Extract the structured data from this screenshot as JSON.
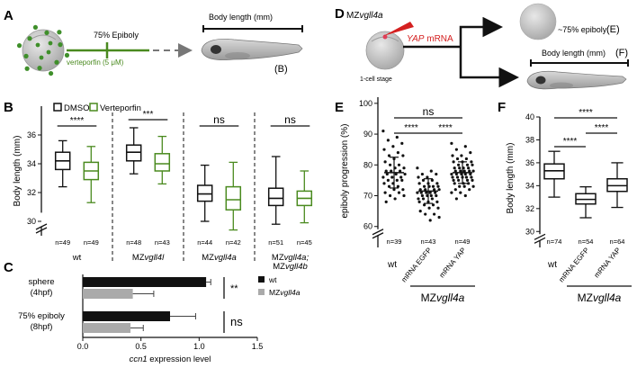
{
  "colors": {
    "dmso": "#111111",
    "verteporfin": "#4a8a1f",
    "wt_bar": "#111111",
    "mz_bar": "#aaaaaa",
    "yap_red": "#d42020",
    "embryo_gray": "#bfbfbf",
    "dot_green": "#3f8f2a",
    "arrow_gray": "#777777"
  },
  "panelA": {
    "letter": "A",
    "epiboly_label": "75% Epiboly",
    "drug_label": "verteporfin (5 μM)",
    "body_length_label": "Body length (mm)",
    "ref_label": "(B)"
  },
  "panelD": {
    "letter": "D",
    "genotype_prefix": "MZ",
    "genotype_italic": "vgll4a",
    "mrna_italic": "YAP",
    "mrna_suffix": " mRNA",
    "stage_label": "1-cell stage",
    "epiboly_label": "~75% epiboly",
    "epiboly_ref": "(E)",
    "body_length_label": "Body length (mm)",
    "body_length_ref": "(F)"
  },
  "chart_data": [
    {
      "panel": "B",
      "type": "box",
      "ylabel": "Body length (mm)",
      "ylim": [
        29,
        38
      ],
      "yticks": [
        30,
        32,
        34,
        36
      ],
      "legend": [
        "DMSO",
        "Verteporfin"
      ],
      "legend_placement": "top",
      "groups": [
        {
          "label": "wt",
          "label_italic": "",
          "label_line2": "",
          "label_line2_italic": "",
          "significance": "****",
          "boxes": [
            {
              "series": "DMSO",
              "n": "n=49",
              "min": 32.4,
              "q1": 33.6,
              "median": 34.2,
              "q3": 34.8,
              "max": 35.6
            },
            {
              "series": "Verteporfin",
              "n": "n=49",
              "min": 31.3,
              "q1": 32.9,
              "median": 33.5,
              "q3": 34.1,
              "max": 35.2
            }
          ]
        },
        {
          "label": "MZ",
          "label_italic": "vgll4l",
          "label_line2": "",
          "label_line2_italic": "",
          "significance": "***",
          "boxes": [
            {
              "series": "DMSO",
              "n": "n=48",
              "min": 33.3,
              "q1": 34.2,
              "median": 34.8,
              "q3": 35.3,
              "max": 36.5
            },
            {
              "series": "Verteporfin",
              "n": "n=43",
              "min": 32.6,
              "q1": 33.5,
              "median": 34.0,
              "q3": 34.7,
              "max": 35.9
            }
          ]
        },
        {
          "label": "MZ",
          "label_italic": "vgll4a",
          "label_line2": "",
          "label_line2_italic": "",
          "significance": "ns",
          "boxes": [
            {
              "series": "DMSO",
              "n": "n=44",
              "min": 30.0,
              "q1": 31.4,
              "median": 31.9,
              "q3": 32.5,
              "max": 33.9
            },
            {
              "series": "Verteporfin",
              "n": "n=42",
              "min": 29.4,
              "q1": 30.8,
              "median": 31.5,
              "q3": 32.4,
              "max": 34.1
            }
          ]
        },
        {
          "label": "MZ",
          "label_italic": "vgll4a;",
          "label_line2": "MZ",
          "label_line2_italic": "vgll4b",
          "significance": "ns",
          "boxes": [
            {
              "series": "DMSO",
              "n": "n=51",
              "min": 29.8,
              "q1": 31.1,
              "median": 31.6,
              "q3": 32.3,
              "max": 34.5
            },
            {
              "series": "Verteporfin",
              "n": "n=45",
              "min": 29.9,
              "q1": 31.1,
              "median": 31.6,
              "q3": 32.1,
              "max": 33.5
            }
          ]
        }
      ]
    },
    {
      "panel": "C",
      "type": "bar",
      "orientation": "horizontal",
      "xlabel_italic": "ccn1",
      "xlabel_rest": " expression level",
      "xlim": [
        0,
        1.5
      ],
      "xticks": [
        "0.0",
        "0.5",
        "1.0",
        "1.5"
      ],
      "legend": [
        "wt",
        "MZvgll4a"
      ],
      "legend_wt": "wt",
      "legend_mz_prefix": "MZ",
      "legend_mz_italic": "vgll4a",
      "categories": [
        {
          "line1": "sphere",
          "line2": "(4hpf)",
          "significance": "**"
        },
        {
          "line1": "75% epiboly",
          "line2": "(8hpf)",
          "significance": "ns"
        }
      ],
      "series": [
        {
          "name": "wt",
          "values": [
            1.06,
            0.75
          ],
          "errors": [
            0.04,
            0.22
          ]
        },
        {
          "name": "MZvgll4a",
          "values": [
            0.43,
            0.41
          ],
          "errors": [
            0.18,
            0.11
          ]
        }
      ]
    },
    {
      "panel": "E",
      "type": "scatter",
      "ylabel": "epiboly progression (%)",
      "ylim": [
        57,
        102
      ],
      "yticks": [
        60,
        70,
        80,
        90,
        100
      ],
      "categories": [
        "wt",
        "mRNA EGFP",
        "mRNA YAP"
      ],
      "group_label_prefix": "MZ",
      "group_label_italic": "vgll4a",
      "n": [
        "n=39",
        "n=43",
        "n=49"
      ],
      "means": [
        77.5,
        71.5,
        77.5
      ],
      "sd": [
        5.0,
        4.0,
        3.5
      ],
      "significance": [
        {
          "from": 0,
          "to": 2,
          "label": "ns"
        },
        {
          "from": 0,
          "to": 1,
          "label": "****"
        },
        {
          "from": 1,
          "to": 2,
          "label": "****"
        }
      ],
      "points": [
        [
          91,
          89,
          88,
          87,
          86,
          85,
          84,
          83,
          83,
          82,
          81,
          80,
          80,
          79,
          79,
          78,
          78,
          78,
          77,
          77,
          77,
          76,
          76,
          76,
          75,
          75,
          75,
          74,
          74,
          73,
          73,
          72,
          72,
          71,
          71,
          70,
          70,
          69,
          68
        ],
        [
          79,
          78,
          77,
          77,
          76,
          76,
          75,
          75,
          74,
          74,
          74,
          73,
          73,
          73,
          73,
          72,
          72,
          72,
          72,
          71,
          71,
          71,
          71,
          71,
          70,
          70,
          70,
          70,
          69,
          69,
          69,
          68,
          68,
          68,
          67,
          67,
          66,
          66,
          65,
          64,
          64,
          63,
          62
        ],
        [
          87,
          86,
          85,
          84,
          83,
          83,
          82,
          82,
          81,
          81,
          81,
          80,
          80,
          80,
          79,
          79,
          79,
          79,
          78,
          78,
          78,
          78,
          78,
          77,
          77,
          77,
          77,
          77,
          76,
          76,
          76,
          76,
          76,
          75,
          75,
          75,
          75,
          74,
          74,
          74,
          73,
          73,
          73,
          72,
          72,
          71,
          71,
          70,
          69
        ]
      ]
    },
    {
      "panel": "F",
      "type": "box",
      "ylabel": "Body length (mm)",
      "ylim": [
        29,
        40
      ],
      "yticks": [
        30,
        32,
        34,
        36,
        38,
        40
      ],
      "categories": [
        "wt",
        "mRNA EGFP",
        "mRNA YAP"
      ],
      "group_label_prefix": "MZ",
      "group_label_italic": "vgll4a",
      "n": [
        "n=74",
        "n=54",
        "n=64"
      ],
      "boxes": [
        {
          "min": 33.0,
          "q1": 34.6,
          "median": 35.3,
          "q3": 35.9,
          "max": 37.0
        },
        {
          "min": 31.2,
          "q1": 32.4,
          "median": 32.8,
          "q3": 33.3,
          "max": 33.9
        },
        {
          "min": 32.1,
          "q1": 33.5,
          "median": 34.0,
          "q3": 34.6,
          "max": 36.0
        }
      ],
      "significance": [
        {
          "from": 0,
          "to": 2,
          "label": "****"
        },
        {
          "from": 0,
          "to": 1,
          "label": "****"
        },
        {
          "from": 1,
          "to": 2,
          "label": "****"
        }
      ]
    }
  ]
}
